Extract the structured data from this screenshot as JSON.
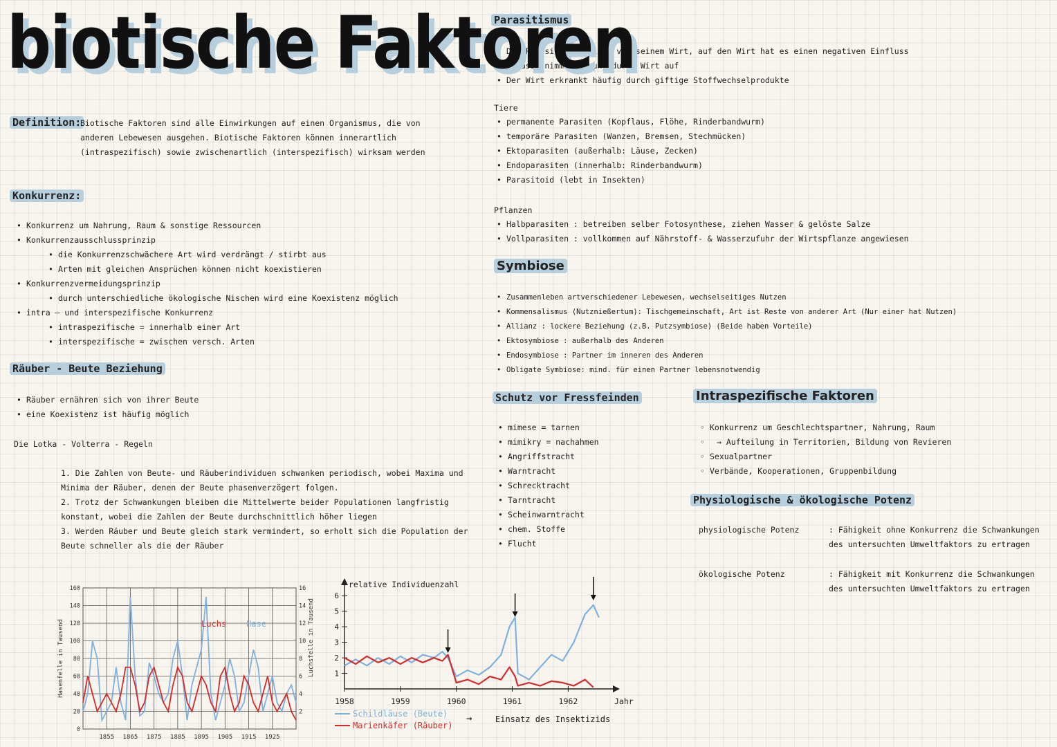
{
  "title": "biotische Faktoren",
  "definition": {
    "label": "Definition:",
    "text": "Biotische Faktoren sind alle Einwirkungen auf einen Organismus, die von anderen Lebewesen ausgehen. Biotische Faktoren können innerartlich (intraspezifisch) sowie zwischenartlich (interspezifisch) wirksam werden"
  },
  "konkurrenz": {
    "heading": "Konkurrenz:",
    "items": [
      "Konkurrenz um Nahrung, Raum & sonstige Ressourcen",
      "Konkurrenzausschlussprinzip",
      "die Konkurrenzschwächere Art wird verdrängt / stirbt aus",
      "Arten mit gleichen Ansprüchen können nicht koexistieren",
      "Konkurrenzvermeidungsprinzip",
      "durch unterschiedliche ökologische Nischen wird eine Koexistenz möglich",
      "intra – und interspezifische Konkurrenz",
      "intraspezifische = innerhalb einer Art",
      "interspezifische = zwischen versch. Arten"
    ]
  },
  "raeuber": {
    "heading": "Räuber - Beute Beziehung",
    "items": [
      "Räuber ernähren sich von ihrer Beute",
      "eine Koexistenz ist häufig möglich"
    ],
    "lotka": "Die Lotka - Volterra - Regeln",
    "rules": [
      "1. Die Zahlen von Beute- und Räuberindividuen schwanken periodisch, wobei Maxima und Minima der Räuber, denen der Beute phasenverzögert folgen.",
      "2. Trotz der Schwankungen bleiben die Mittelwerte beider Populationen langfristig konstant, wobei die Zahlen der Beute durchschnittlich höher liegen",
      "3. Werden Räuber und Beute gleich stark vermindert, so erholt sich die Population der Beute schneller als die der Räuber"
    ]
  },
  "parasitismus": {
    "heading": "Parasitismus",
    "items": [
      "Der Parasit profitiert von seinem Wirt, auf den Wirt hat es einen negativen Einfluss",
      "Parasit nimmt Nahrung durch Wirt auf",
      "Der Wirt erkrankt häufig durch giftige Stoffwechselprodukte"
    ],
    "tiere_label": "Tiere",
    "tiere": [
      "permanente Parasiten (Kopflaus, Flöhe, Rinderbandwurm)",
      "temporäre Parasiten (Wanzen, Bremsen, Stechmücken)",
      "Ektoparasiten (außerhalb: Läuse, Zecken)",
      "Endoparasiten (innerhalb: Rinderbandwurm)",
      "Parasitoid (lebt in Insekten)"
    ],
    "pflanzen_label": "Pflanzen",
    "pflanzen": [
      "Halbparasiten : betreiben selber Fotosynthese, ziehen Wasser & gelöste Salze",
      "Vollparasiten : vollkommen auf Nährstoff- & Wasserzufuhr der Wirtspflanze angewiesen"
    ]
  },
  "symbiose": {
    "heading": "Symbiose",
    "items": [
      "Zusammenleben artverschiedener Lebewesen, wechselseitiges Nutzen",
      "Kommensalismus (Nutznießertum): Tischgemeinschaft, Art ist Reste von anderer Art (Nur einer hat Nutzen)",
      "Allianz : lockere Beziehung (z.B. Putzsymbiose) (Beide haben Vorteile)",
      "Ektosymbiose : außerhalb des Anderen",
      "Endosymbiose : Partner im inneren des Anderen",
      "Obligate Symbiose: mind. für einen Partner lebensnotwendig"
    ]
  },
  "schutz": {
    "heading": "Schutz vor Fressfeinden",
    "items": [
      "mimese = tarnen",
      "mimikry = nachahmen",
      "Angriffstracht",
      "Warntracht",
      "Schrecktracht",
      "Tarntracht",
      "Scheinwarntracht",
      "chem. Stoffe",
      "Flucht"
    ]
  },
  "intra": {
    "heading": "Intraspezifische Faktoren",
    "items": [
      "Konkurrenz um Geschlechtspartner, Nahrung, Raum",
      "→ Aufteilung in Territorien, Bildung von Revieren",
      "Sexualpartner",
      "Verbände, Kooperationen, Gruppenbildung"
    ]
  },
  "potenz": {
    "heading": "Physiologische & ökologische Potenz",
    "items": [
      {
        "term": "physiologische Potenz",
        "def": ": Fähigkeit ohne Konkurrenz die Schwankungen des untersuchten Umweltfaktors zu ertragen"
      },
      {
        "term": "ökologische Potenz",
        "def": ": Fähigkeit mit Konkurrenz die Schwankungen des untersuchten Umweltfaktors zu ertragen"
      }
    ]
  },
  "chart_data": [
    {
      "type": "line",
      "ylabel_left": "Hasenfelle in Tausend",
      "ylabel_right": "Luchsfelle in Tausend",
      "x_ticks": [
        "1855",
        "1865",
        "1875",
        "1885",
        "1895",
        "1905",
        "1915",
        "1925"
      ],
      "y_left_ticks": [
        "0",
        "20",
        "40",
        "60",
        "80",
        "100",
        "120",
        "140",
        "160"
      ],
      "y_right_ticks": [
        "2",
        "4",
        "6",
        "8",
        "10",
        "12",
        "14",
        "16"
      ],
      "ylim_left": [
        0,
        160
      ],
      "ylim_right": [
        0,
        16
      ],
      "colors": {
        "Luchs": "#d22b2b",
        "Hase": "#7fb0dd"
      },
      "series": [
        {
          "name": "Hase",
          "axis": "left",
          "x": [
            1845,
            1847,
            1849,
            1851,
            1853,
            1855,
            1857,
            1859,
            1861,
            1863,
            1865,
            1867,
            1869,
            1871,
            1873,
            1875,
            1877,
            1879,
            1881,
            1883,
            1885,
            1887,
            1889,
            1891,
            1893,
            1895,
            1897,
            1899,
            1901,
            1903,
            1905,
            1907,
            1909,
            1911,
            1913,
            1915,
            1917,
            1919,
            1921,
            1923,
            1925,
            1927,
            1929,
            1931,
            1933,
            1935
          ],
          "y": [
            20,
            40,
            100,
            80,
            10,
            20,
            30,
            70,
            30,
            10,
            150,
            60,
            15,
            20,
            75,
            60,
            40,
            30,
            40,
            80,
            100,
            60,
            10,
            50,
            70,
            90,
            150,
            40,
            10,
            30,
            50,
            80,
            60,
            20,
            30,
            60,
            90,
            70,
            20,
            40,
            60,
            30,
            20,
            40,
            50,
            30
          ]
        },
        {
          "name": "Luchs",
          "axis": "right",
          "x": [
            1845,
            1847,
            1849,
            1851,
            1853,
            1855,
            1857,
            1859,
            1861,
            1863,
            1865,
            1867,
            1869,
            1871,
            1873,
            1875,
            1877,
            1879,
            1881,
            1883,
            1885,
            1887,
            1889,
            1891,
            1893,
            1895,
            1897,
            1899,
            1901,
            1903,
            1905,
            1907,
            1909,
            1911,
            1913,
            1915,
            1917,
            1919,
            1921,
            1923,
            1925,
            1927,
            1929,
            1931,
            1933,
            1935
          ],
          "y": [
            3,
            6,
            4,
            2,
            3,
            4,
            3,
            2,
            4,
            7,
            7,
            5,
            2,
            3,
            6,
            7,
            5,
            3,
            2,
            5,
            7,
            6,
            3,
            2,
            4,
            6,
            5,
            3,
            2,
            6,
            7,
            4,
            2,
            3,
            6,
            5,
            3,
            2,
            4,
            6,
            3,
            2,
            3,
            4,
            2,
            1
          ]
        }
      ],
      "legend": [
        "Luchs",
        "Hase"
      ]
    },
    {
      "type": "line",
      "ylabel": "relative Individuenzahl",
      "xlabel": "Jahr",
      "x_ticks": [
        "1958",
        "1959",
        "1960",
        "1961",
        "1962"
      ],
      "y_ticks": [
        "1",
        "2",
        "3",
        "4",
        "5",
        "6"
      ],
      "ylim": [
        0,
        6.5
      ],
      "colors": {
        "Schildläuse (Beute)": "#7fb0dd",
        "Marienkäfer (Räuber)": "#d22b2b"
      },
      "series": [
        {
          "name": "Schildläuse (Beute)",
          "x": [
            1958.0,
            1958.2,
            1958.4,
            1958.6,
            1958.8,
            1959.0,
            1959.2,
            1959.4,
            1959.6,
            1959.75,
            1959.85,
            1960.0,
            1960.2,
            1960.4,
            1960.6,
            1960.8,
            1960.95,
            1961.05,
            1961.1,
            1961.3,
            1961.5,
            1961.7,
            1961.9,
            1962.1,
            1962.3,
            1962.45,
            1962.55
          ],
          "y": [
            1.5,
            1.9,
            1.5,
            2.0,
            1.6,
            2.1,
            1.7,
            2.2,
            2.0,
            2.4,
            2.0,
            0.8,
            1.2,
            0.9,
            1.4,
            2.2,
            4.0,
            4.6,
            1.0,
            0.6,
            1.4,
            2.2,
            1.8,
            3.0,
            4.8,
            5.4,
            4.6
          ]
        },
        {
          "name": "Marienkäfer (Räuber)",
          "x": [
            1958.0,
            1958.2,
            1958.4,
            1958.6,
            1958.8,
            1959.0,
            1959.2,
            1959.4,
            1959.6,
            1959.75,
            1959.85,
            1960.0,
            1960.2,
            1960.4,
            1960.6,
            1960.8,
            1960.95,
            1961.05,
            1961.1,
            1961.3,
            1961.5,
            1961.7,
            1961.9,
            1962.1,
            1962.3,
            1962.45
          ],
          "y": [
            2.0,
            1.6,
            2.1,
            1.7,
            2.0,
            1.6,
            2.0,
            1.7,
            2.0,
            1.8,
            2.2,
            0.4,
            0.6,
            0.3,
            0.8,
            0.6,
            1.4,
            0.8,
            0.2,
            0.4,
            0.2,
            0.5,
            0.4,
            0.2,
            0.6,
            0.1
          ]
        }
      ],
      "arrows_at": [
        1959.85,
        1961.05,
        1962.45
      ],
      "legend": [
        "Schildläuse (Beute)",
        "Marienkäfer (Räuber)"
      ],
      "note_arrow": "→",
      "note": "Einsatz des Insektizids"
    }
  ]
}
